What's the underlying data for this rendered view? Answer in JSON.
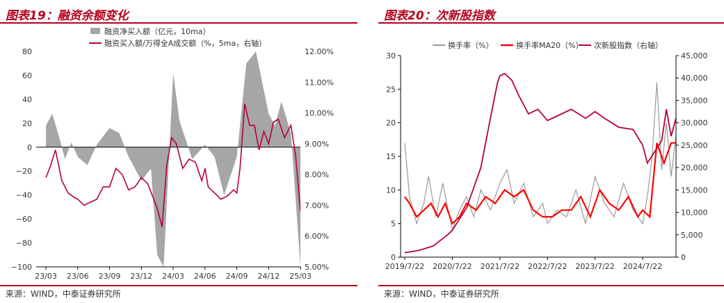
{
  "left_panel": {
    "title": "图表19：融资余额变化",
    "source": "来源：WIND，中泰证券研究所"
  },
  "right_panel": {
    "title": "图表20：次新股指数",
    "source": "来源：WIND，中泰证券研究所"
  },
  "chart_data": [
    {
      "type": "area",
      "title": "图表19：融资余额变化",
      "categories": [
        "23/03",
        "23/06",
        "23/09",
        "23/12",
        "24/03",
        "24/06",
        "24/09",
        "24/12",
        "25/03"
      ],
      "y_left": {
        "min": -100,
        "max": 80,
        "ticks": [
          "80",
          "60",
          "40",
          "20",
          "0",
          "−20",
          "−40",
          "−60",
          "−80",
          "−100"
        ]
      },
      "y_right": {
        "min": 5.0,
        "max": 12.0,
        "ticks": [
          "12.00%",
          "11.00%",
          "10.00%",
          "9.00%",
          "8.00%",
          "7.00%",
          "6.00%",
          "5.00%"
        ]
      },
      "legend_position": "top",
      "colors": {
        "area": "#a6a6a6",
        "line": "#b3003a"
      },
      "series": [
        {
          "name": "融资净买入额（亿元，10ma）",
          "axis": "left",
          "type": "area",
          "x": [
            0,
            0.2,
            0.4,
            0.6,
            0.8,
            1,
            1.3,
            1.6,
            2,
            2.3,
            2.6,
            3,
            3.3,
            3.5,
            3.7,
            4,
            4.2,
            4.6,
            5,
            5.3,
            5.6,
            6,
            6.3,
            6.6,
            7,
            7.2,
            7.4,
            7.7,
            8
          ],
          "values": [
            18,
            28,
            10,
            -10,
            4,
            -8,
            -15,
            2,
            16,
            12,
            -8,
            -28,
            -18,
            -90,
            -100,
            62,
            22,
            -10,
            2,
            -8,
            -40,
            -8,
            70,
            80,
            28,
            18,
            38,
            12,
            -100
          ]
        },
        {
          "name": "融资买入额/万得全A成交额（%，5ma，右轴）",
          "axis": "right",
          "type": "line",
          "x": [
            0,
            0.15,
            0.3,
            0.5,
            0.7,
            0.9,
            1,
            1.2,
            1.4,
            1.6,
            1.8,
            2,
            2.2,
            2.4,
            2.6,
            2.8,
            3,
            3.2,
            3.35,
            3.5,
            3.65,
            3.8,
            3.95,
            4.1,
            4.3,
            4.5,
            4.7,
            4.9,
            5,
            5.1,
            5.3,
            5.5,
            5.7,
            5.9,
            6,
            6.1,
            6.25,
            6.4,
            6.55,
            6.7,
            6.85,
            7,
            7.15,
            7.3,
            7.5,
            7.7,
            7.85,
            8
          ],
          "values": [
            7.9,
            8.3,
            8.8,
            7.8,
            7.4,
            7.25,
            7.2,
            7.0,
            7.1,
            7.2,
            7.6,
            7.6,
            8.2,
            8.0,
            7.5,
            7.6,
            7.9,
            7.7,
            7.3,
            6.9,
            6.3,
            8.3,
            9.2,
            9.0,
            8.2,
            8.5,
            8.4,
            7.8,
            8.2,
            7.6,
            7.4,
            7.2,
            7.3,
            7.5,
            7.4,
            8.2,
            10.3,
            9.6,
            9.6,
            8.8,
            9.4,
            9.0,
            9.7,
            9.8,
            9.2,
            9.6,
            8.6,
            6.8
          ]
        }
      ]
    },
    {
      "type": "line",
      "title": "图表20：次新股指数",
      "categories": [
        "2019/7/22",
        "2020/7/22",
        "2021/7/22",
        "2022/7/22",
        "2023/7/22",
        "2024/7/22"
      ],
      "y_left": {
        "min": 0,
        "max": 30,
        "ticks": [
          "30",
          "25",
          "20",
          "15",
          "10",
          "5",
          "0"
        ]
      },
      "y_right": {
        "min": 0,
        "max": 45000,
        "ticks": [
          "45,000",
          "40,000",
          "35,000",
          "30,000",
          "25,000",
          "20,000",
          "15,000",
          "10,000",
          "5,000",
          "0"
        ]
      },
      "legend_position": "top",
      "colors": {
        "turnover": "#999999",
        "ma20": "#ff0000",
        "index": "#b3003a"
      },
      "series": [
        {
          "name": "换手率（%）",
          "axis": "left",
          "x": [
            0,
            0.1,
            0.25,
            0.4,
            0.5,
            0.65,
            0.8,
            1,
            1.15,
            1.3,
            1.45,
            1.6,
            1.8,
            2,
            2.15,
            2.3,
            2.5,
            2.7,
            2.9,
            3,
            3.2,
            3.4,
            3.6,
            3.8,
            4,
            4.2,
            4.4,
            4.6,
            4.8,
            5,
            5.1,
            5.2,
            5.3,
            5.4,
            5.5,
            5.6,
            5.7
          ],
          "values": [
            17,
            9,
            5,
            8,
            12,
            6,
            11,
            4,
            7,
            9,
            6,
            10,
            7,
            11,
            13,
            8,
            11,
            6,
            8,
            5,
            7,
            6,
            10,
            5,
            12,
            8,
            6,
            11,
            7,
            5,
            9,
            15,
            26,
            13,
            20,
            12,
            18
          ]
        },
        {
          "name": "换手率MA20（%）",
          "axis": "left",
          "x": [
            0,
            0.1,
            0.25,
            0.4,
            0.55,
            0.7,
            0.85,
            1,
            1.15,
            1.3,
            1.5,
            1.7,
            1.9,
            2.1,
            2.3,
            2.5,
            2.7,
            2.9,
            3.1,
            3.3,
            3.5,
            3.7,
            3.9,
            4.1,
            4.3,
            4.5,
            4.7,
            4.9,
            5,
            5.15,
            5.3,
            5.45,
            5.6,
            5.7
          ],
          "values": [
            9,
            8,
            6,
            7,
            8,
            6,
            8,
            5,
            6,
            8,
            7,
            9,
            8,
            10,
            9,
            10,
            7,
            6,
            6,
            7,
            7,
            9,
            6,
            10,
            8,
            7,
            9,
            6,
            7,
            6,
            17,
            14,
            17,
            17
          ]
        },
        {
          "name": "次新股指数（右轴）",
          "axis": "right",
          "x": [
            0,
            0.3,
            0.6,
            0.9,
            1,
            1.3,
            1.6,
            1.8,
            1.95,
            2,
            2.1,
            2.25,
            2.4,
            2.6,
            2.8,
            3,
            3.2,
            3.5,
            3.8,
            4,
            4.2,
            4.5,
            4.8,
            5,
            5.1,
            5.25,
            5.4,
            5.5,
            5.6,
            5.7
          ],
          "values": [
            1000,
            1500,
            2500,
            5000,
            6000,
            11000,
            20000,
            31000,
            39000,
            40500,
            41000,
            39500,
            36000,
            32000,
            33000,
            30500,
            31500,
            33000,
            31000,
            32500,
            31000,
            29000,
            28500,
            25000,
            21000,
            23500,
            26000,
            33000,
            27000,
            31000
          ]
        }
      ]
    }
  ]
}
